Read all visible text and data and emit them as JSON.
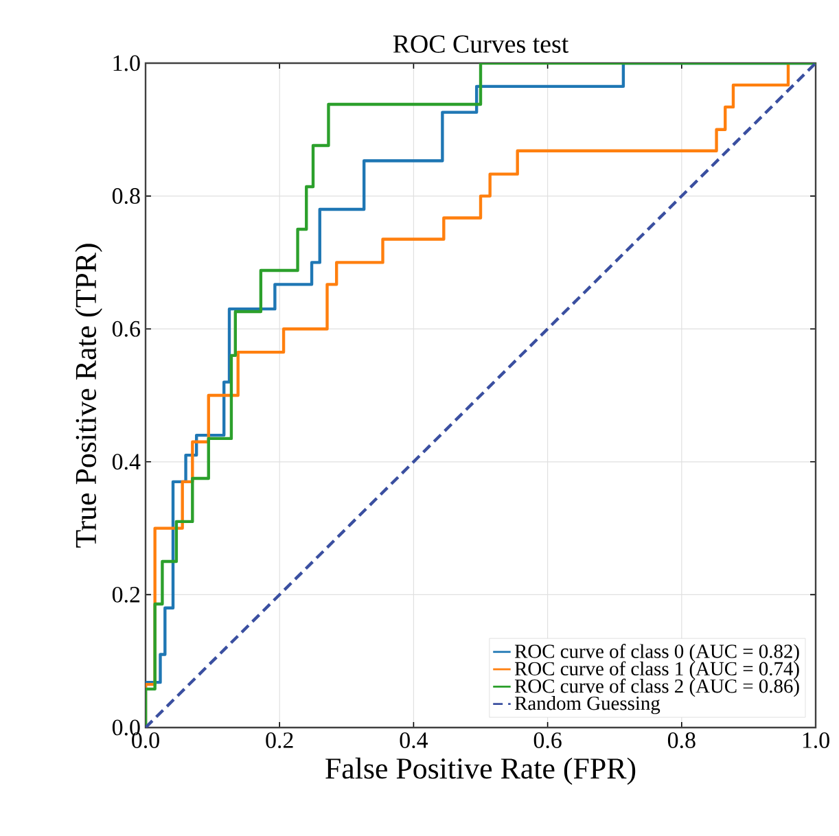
{
  "chart_data": {
    "type": "line",
    "title": "ROC Curves test",
    "xlabel": "False Positive Rate (FPR)",
    "ylabel": "True Positive Rate (TPR)",
    "xlim": [
      0,
      1
    ],
    "ylim": [
      0,
      1
    ],
    "xticks": [
      {
        "value": 0,
        "label": "0.0"
      },
      {
        "value": 0.2,
        "label": "0.2"
      },
      {
        "value": 0.4,
        "label": "0.4"
      },
      {
        "value": 0.6,
        "label": "0.6"
      },
      {
        "value": 0.8,
        "label": "0.8"
      },
      {
        "value": 1,
        "label": "1.0"
      }
    ],
    "yticks": [
      {
        "value": 0,
        "label": "0.0"
      },
      {
        "value": 0.2,
        "label": "0.2"
      },
      {
        "value": 0.4,
        "label": "0.4"
      },
      {
        "value": 0.6,
        "label": "0.6"
      },
      {
        "value": 0.8,
        "label": "0.8"
      },
      {
        "value": 1,
        "label": "1.0"
      }
    ],
    "grid": true,
    "legend": "bottom right",
    "line_style": "solid",
    "series": [
      {
        "name": "ROC curve of class 0 (AUC = 0.82)",
        "color": "#1f77b4",
        "x": [
          0,
          0,
          0.022,
          0.022,
          0.029,
          0.029,
          0.041,
          0.041,
          0.06,
          0.06,
          0.076,
          0.076,
          0.117,
          0.117,
          0.125,
          0.125,
          0.193,
          0.193,
          0.248,
          0.248,
          0.26,
          0.26,
          0.326,
          0.326,
          0.443,
          0.443,
          0.494,
          0.494,
          0.713,
          0.713,
          1
        ],
        "values": [
          0,
          0.068,
          0.068,
          0.11,
          0.11,
          0.18,
          0.18,
          0.37,
          0.37,
          0.41,
          0.41,
          0.44,
          0.44,
          0.52,
          0.52,
          0.63,
          0.63,
          0.667,
          0.667,
          0.7,
          0.7,
          0.78,
          0.78,
          0.853,
          0.853,
          0.926,
          0.926,
          0.965,
          0.965,
          1,
          1
        ]
      },
      {
        "name": "ROC curve of class 1 (AUC = 0.74)",
        "color": "#ff7f0e",
        "x": [
          0,
          0,
          0.014,
          0.014,
          0.055,
          0.055,
          0.07,
          0.07,
          0.094,
          0.094,
          0.138,
          0.138,
          0.206,
          0.206,
          0.271,
          0.271,
          0.285,
          0.285,
          0.354,
          0.354,
          0.445,
          0.445,
          0.5,
          0.5,
          0.514,
          0.514,
          0.555,
          0.555,
          0.852,
          0.852,
          0.865,
          0.865,
          0.877,
          0.877,
          0.959,
          0.959
        ],
        "values": [
          0,
          0.065,
          0.065,
          0.3,
          0.3,
          0.37,
          0.37,
          0.43,
          0.43,
          0.5,
          0.5,
          0.565,
          0.565,
          0.6,
          0.6,
          0.667,
          0.667,
          0.7,
          0.7,
          0.735,
          0.735,
          0.767,
          0.767,
          0.8,
          0.8,
          0.833,
          0.833,
          0.868,
          0.868,
          0.9,
          0.9,
          0.934,
          0.934,
          0.967,
          0.967,
          1
        ]
      },
      {
        "name": "ROC curve of class 2 (AUC = 0.86)",
        "color": "#2ca02c",
        "x": [
          0,
          0,
          0.014,
          0.014,
          0.025,
          0.025,
          0.046,
          0.046,
          0.07,
          0.07,
          0.094,
          0.094,
          0.128,
          0.128,
          0.134,
          0.134,
          0.172,
          0.172,
          0.227,
          0.227,
          0.24,
          0.24,
          0.25,
          0.25,
          0.273,
          0.273,
          0.5,
          0.5,
          1
        ],
        "values": [
          0,
          0.058,
          0.058,
          0.186,
          0.186,
          0.25,
          0.25,
          0.31,
          0.31,
          0.375,
          0.375,
          0.435,
          0.435,
          0.56,
          0.56,
          0.626,
          0.626,
          0.688,
          0.688,
          0.75,
          0.75,
          0.814,
          0.814,
          0.876,
          0.876,
          0.938,
          0.938,
          1,
          1
        ]
      },
      {
        "name": "Random Guessing",
        "color": "#3a4fa0",
        "line_style": "dashed",
        "x": [
          0,
          1
        ],
        "values": [
          0,
          1
        ]
      }
    ]
  }
}
